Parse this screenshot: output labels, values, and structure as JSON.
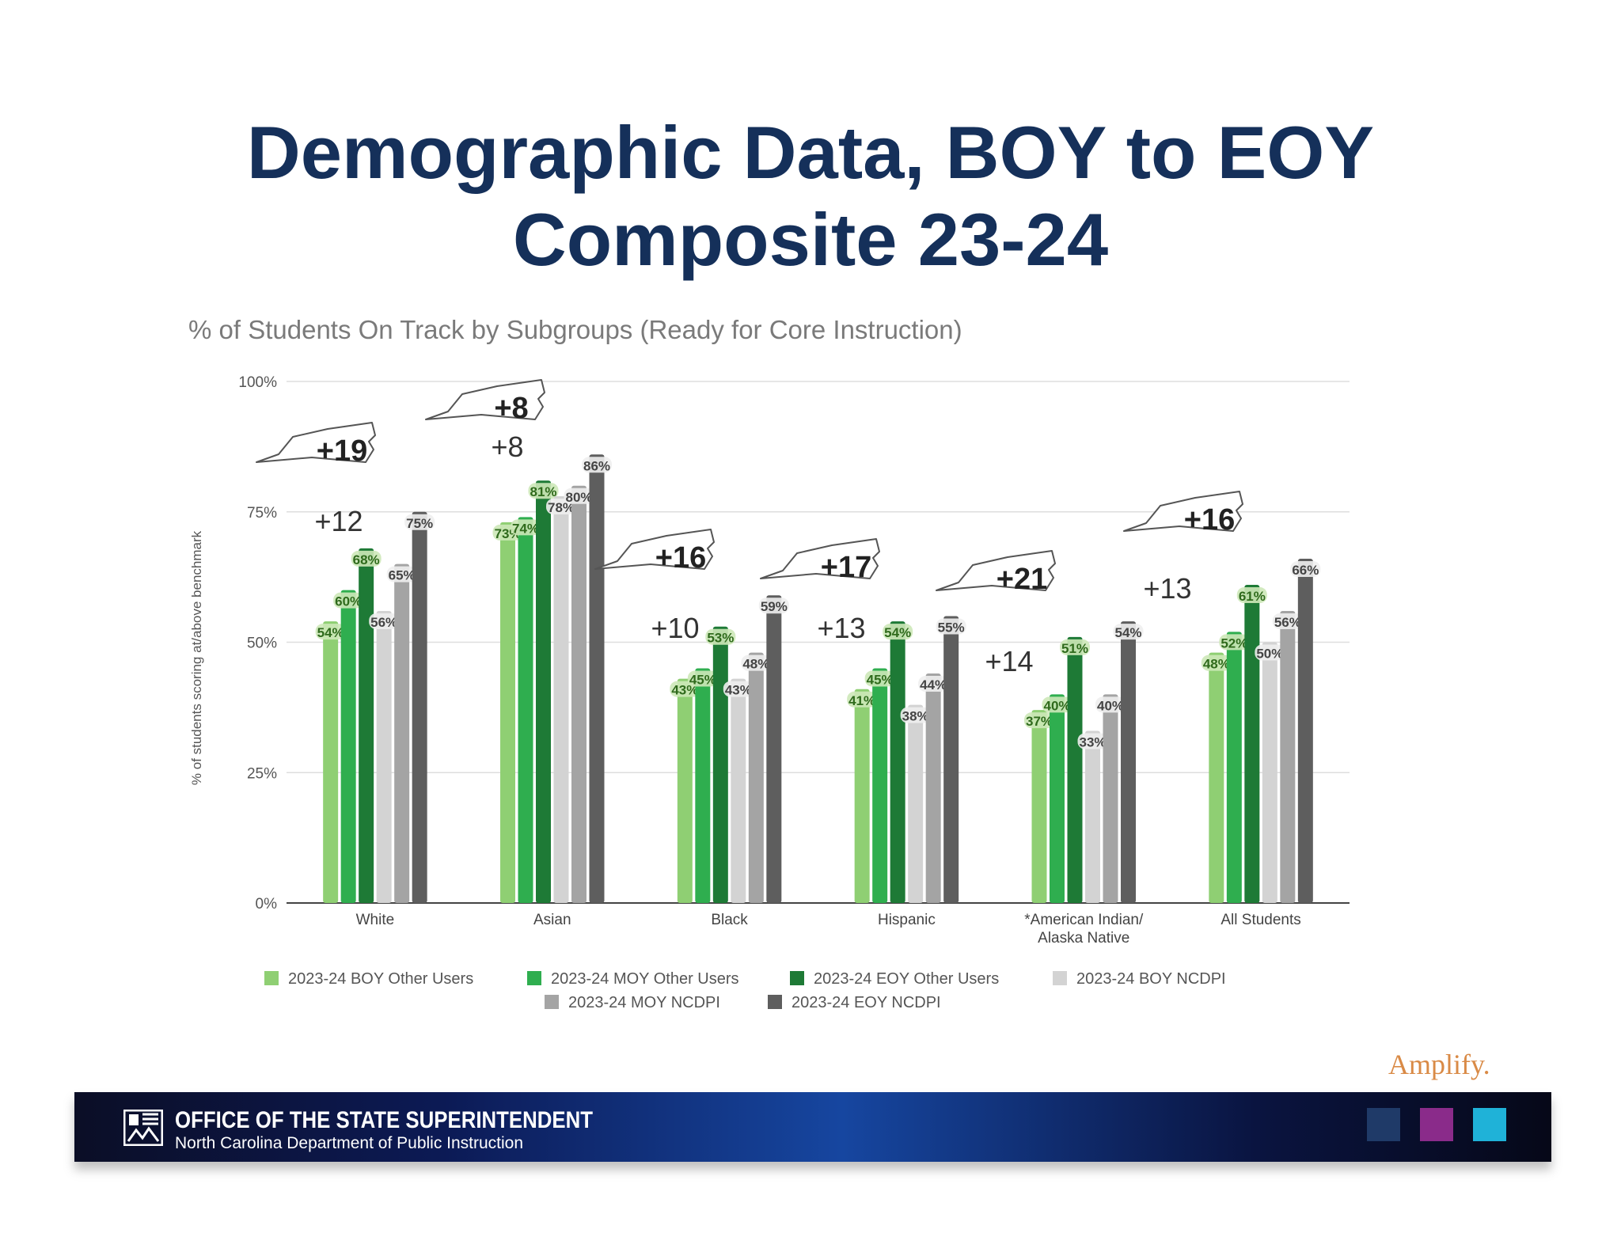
{
  "slide": {
    "title_line1": "Demographic Data, BOY to EOY",
    "title_line2": "Composite 23-24"
  },
  "chart_data": {
    "type": "bar",
    "title": "% of Students On Track by Subgroups (Ready for Core Instruction)",
    "ylabel": "% of students scoring at/above benchmark",
    "xlabel": "",
    "ylim": [
      0,
      100
    ],
    "yticks": [
      0,
      25,
      50,
      75,
      100
    ],
    "ytick_labels": [
      "0%",
      "25%",
      "50%",
      "75%",
      "100%"
    ],
    "grid": true,
    "legend_position": "bottom",
    "categories": [
      [
        "White"
      ],
      [
        "Asian"
      ],
      [
        "Black"
      ],
      [
        "Hispanic"
      ],
      [
        "*American Indian/",
        "Alaska Native"
      ],
      [
        "All Students"
      ]
    ],
    "series": [
      {
        "name": "2023-24 BOY Other Users",
        "color": "#8fcf73",
        "values": [
          54,
          73,
          43,
          41,
          37,
          48
        ]
      },
      {
        "name": "2023-24 MOY Other Users",
        "color": "#2fae4f",
        "values": [
          60,
          74,
          45,
          45,
          40,
          52
        ]
      },
      {
        "name": "2023-24 EOY Other Users",
        "color": "#1e7a36",
        "values": [
          68,
          81,
          53,
          54,
          51,
          61
        ]
      },
      {
        "name": "2023-24 BOY NCDPI",
        "color": "#d3d3d3",
        "values": [
          56,
          78,
          43,
          38,
          33,
          50
        ]
      },
      {
        "name": "2023-24 MOY NCDPI",
        "color": "#a4a4a4",
        "values": [
          65,
          80,
          48,
          44,
          40,
          56
        ]
      },
      {
        "name": "2023-24 EOY NCDPI",
        "color": "#5e5e5e",
        "values": [
          75,
          86,
          59,
          55,
          54,
          66
        ]
      }
    ],
    "data_labels": [
      [
        "54%",
        "60%",
        "68%",
        "56%",
        "65%",
        "75%"
      ],
      [
        "73%",
        "74%",
        "81%",
        "78%",
        "80%",
        "86%"
      ],
      [
        "43%",
        "45%",
        "53%",
        "43%",
        "48%",
        "59%"
      ],
      [
        "41%",
        "45%",
        "54%",
        "38%",
        "44%",
        "55%"
      ],
      [
        "37%",
        "40%",
        "51%",
        "33%",
        "40%",
        "54%"
      ],
      [
        "48%",
        "52%",
        "61%",
        "50%",
        "56%",
        "66%"
      ]
    ],
    "other_users_gains": [
      "+12",
      "+8",
      "+10",
      "+13",
      "+14",
      "+13"
    ],
    "ncdpi_gains": [
      "+19",
      "+8",
      "+16",
      "+17",
      "+21",
      "+16"
    ]
  },
  "branding": {
    "vendor_logo": "Amplify.",
    "office_title": "OFFICE OF THE STATE SUPERINTENDENT",
    "office_subtitle": "North Carolina Department of Public Instruction",
    "accent_colors": [
      "#1f3a68",
      "#8a2b8a",
      "#1fb2d8"
    ]
  }
}
